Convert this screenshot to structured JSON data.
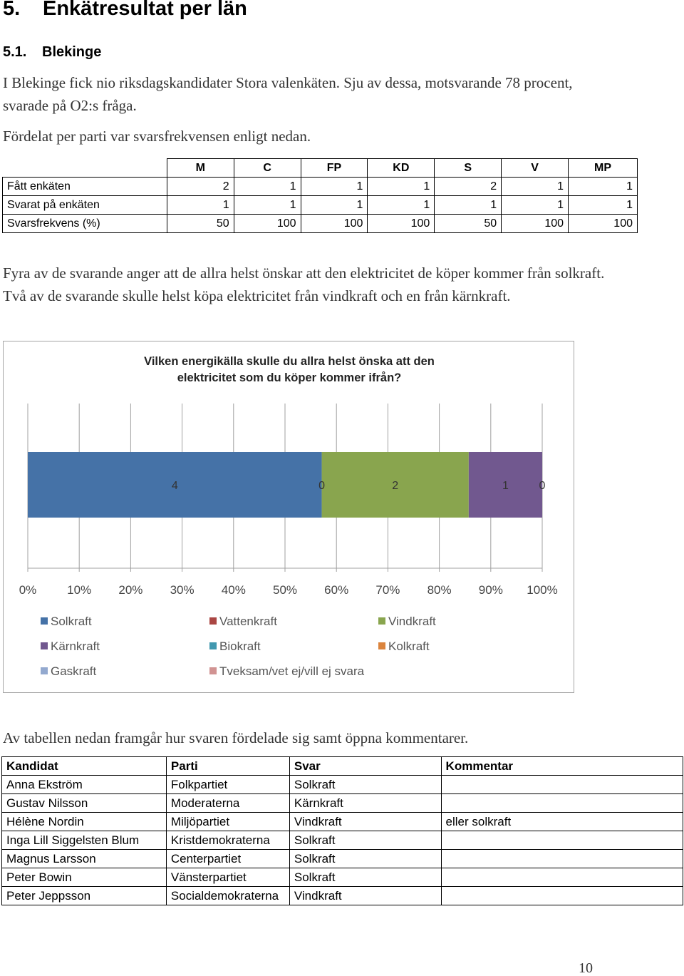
{
  "heading": {
    "number": "5.",
    "title": "Enkätresultat per län"
  },
  "subheading": {
    "number": "5.1.",
    "title": "Blekinge"
  },
  "intro": {
    "p1": "I Blekinge fick nio riksdagskandidater Stora valenkäten. Sju av dessa, motsvarande 78 procent, svarade på O2:s fråga.",
    "p2": "Fördelat per parti var svarsfrekvensen enligt nedan."
  },
  "response_table": {
    "parties": [
      "M",
      "C",
      "FP",
      "KD",
      "S",
      "V",
      "MP"
    ],
    "rows": [
      {
        "label": "Fått enkäten",
        "values": [
          "2",
          "1",
          "1",
          "1",
          "2",
          "1",
          "1"
        ]
      },
      {
        "label": "Svarat på enkäten",
        "values": [
          "1",
          "1",
          "1",
          "1",
          "1",
          "1",
          "1"
        ]
      },
      {
        "label": "Svarsfrekvens (%)",
        "values": [
          "50",
          "100",
          "100",
          "100",
          "50",
          "100",
          "100"
        ]
      }
    ]
  },
  "summary": "Fyra av de svarande anger att de allra helst önskar att den elektricitet de köper kommer från solkraft. Två av de svarande skulle helst köpa elektricitet från vindkraft och en från kärnkraft.",
  "chart_data": {
    "type": "bar",
    "orientation": "horizontal",
    "stacked": "percent",
    "title": "Vilken energikälla skulle du allra helst önska att den elektricitet som du köper kommer ifrån?",
    "x_ticks": [
      "0%",
      "10%",
      "20%",
      "30%",
      "40%",
      "50%",
      "60%",
      "70%",
      "80%",
      "90%",
      "100%"
    ],
    "xlim": [
      0,
      100
    ],
    "grid": true,
    "legend_position": "bottom",
    "series": [
      {
        "name": "Solkraft",
        "value": 4,
        "color": "#4572A7"
      },
      {
        "name": "Vattenkraft",
        "value": 0,
        "color": "#AA4643"
      },
      {
        "name": "Vindkraft",
        "value": 2,
        "color": "#89A54E"
      },
      {
        "name": "Kärnkraft",
        "value": 1,
        "color": "#71588F"
      },
      {
        "name": "Biokraft",
        "value": 0,
        "color": "#4198AF"
      },
      {
        "name": "Kolkraft",
        "value": 0,
        "color": "#DB843D"
      },
      {
        "name": "Gaskraft",
        "value": 0,
        "color": "#93A9CF"
      },
      {
        "name": "Tveksam/vet ej/vill ej svara",
        "value": 0,
        "color": "#D19392"
      }
    ],
    "data_labels": [
      "4",
      "0",
      "2",
      "1",
      "0"
    ]
  },
  "table_intro": "Av tabellen nedan framgår hur svaren fördelade sig samt öppna kommentarer.",
  "candidate_table": {
    "headers": [
      "Kandidat",
      "Parti",
      "Svar",
      "Kommentar"
    ],
    "rows": [
      [
        "Anna Ekström",
        "Folkpartiet",
        "Solkraft",
        ""
      ],
      [
        "Gustav Nilsson",
        "Moderaterna",
        "Kärnkraft",
        ""
      ],
      [
        "Hélène Nordin",
        "Miljöpartiet",
        "Vindkraft",
        "eller solkraft"
      ],
      [
        "Inga Lill Siggelsten Blum",
        "Kristdemokraterna",
        "Solkraft",
        ""
      ],
      [
        "Magnus Larsson",
        "Centerpartiet",
        "Solkraft",
        ""
      ],
      [
        "Peter Bowin",
        "Vänsterpartiet",
        "Solkraft",
        ""
      ],
      [
        "Peter Jeppsson",
        "Socialdemokraterna",
        "Vindkraft",
        ""
      ]
    ]
  },
  "page_number": "10"
}
